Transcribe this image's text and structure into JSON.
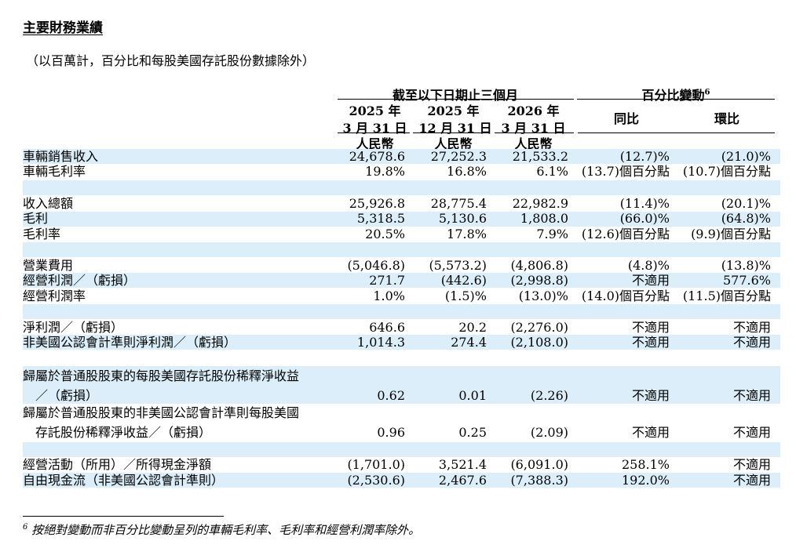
{
  "title": "主要財務業績",
  "subtitle": "（以百萬計，百分比和每股美國存託股份數據除外）",
  "header": {
    "group_period": "截至以下日期止三個月",
    "group_change": "百分比變動",
    "group_change_note": "6",
    "periods": [
      {
        "year": "2025 年",
        "date": "3 月 31 日",
        "currency": "人民幣"
      },
      {
        "year": "2025 年",
        "date": "12 月 31 日",
        "currency": "人民幣"
      },
      {
        "year": "2026 年",
        "date": "3 月 31 日",
        "currency": "人民幣"
      }
    ],
    "yoy": "同比",
    "qoq": "環比"
  },
  "rows": [
    {
      "label": "車輛銷售收入",
      "v1": "24,678.6",
      "v2": "27,252.3",
      "v3": "21,533.2",
      "yoy": "(12.7)%",
      "qoq": "(21.0)%"
    },
    {
      "label": "車輛毛利率",
      "v1": "19.8%",
      "v2": "16.8%",
      "v3": "6.1%",
      "yoy": "(13.7)個百分點",
      "qoq": "(10.7)個百分點"
    },
    {
      "label": "收入總額",
      "v1": "25,926.8",
      "v2": "28,775.4",
      "v3": "22,982.9",
      "yoy": "(11.4)%",
      "qoq": "(20.1)%"
    },
    {
      "label": "毛利",
      "v1": "5,318.5",
      "v2": "5,130.6",
      "v3": "1,808.0",
      "yoy": "(66.0)%",
      "qoq": "(64.8)%"
    },
    {
      "label": "毛利率",
      "v1": "20.5%",
      "v2": "17.8%",
      "v3": "7.9%",
      "yoy": "(12.6)個百分點",
      "qoq": "(9.9)個百分點"
    },
    {
      "label": "營業費用",
      "v1": "(5,046.8)",
      "v2": "(5,573.2)",
      "v3": "(4,806.8)",
      "yoy": "(4.8)%",
      "qoq": "(13.8)%"
    },
    {
      "label": "經營利潤／（虧損）",
      "v1": "271.7",
      "v2": "(442.6)",
      "v3": "(2,998.8)",
      "yoy": "不適用",
      "qoq": "577.6%"
    },
    {
      "label": "經營利潤率",
      "v1": "1.0%",
      "v2": "(1.5)%",
      "v3": "(13.0)%",
      "yoy": "(14.0)個百分點",
      "qoq": "(11.5)個百分點"
    },
    {
      "label": "淨利潤／（虧損）",
      "v1": "646.6",
      "v2": "20.2",
      "v3": "(2,276.0)",
      "yoy": "不適用",
      "qoq": "不適用"
    },
    {
      "label": "非美國公認會計準則淨利潤／（虧損）",
      "v1": "1,014.3",
      "v2": "274.4",
      "v3": "(2,108.0)",
      "yoy": "不適用",
      "qoq": "不適用"
    },
    {
      "label": "歸屬於普通股股東的每股美國存託股份稀釋淨收益"
    },
    {
      "label": "／（虧損）",
      "v1": "0.62",
      "v2": "0.01",
      "v3": "(2.26)",
      "yoy": "不適用",
      "qoq": "不適用"
    },
    {
      "label": "歸屬於普通股股東的非美國公認會計準則每股美國"
    },
    {
      "label": "存託股份稀釋淨收益／（虧損）",
      "v1": "0.96",
      "v2": "0.25",
      "v3": "(2.09)",
      "yoy": "不適用",
      "qoq": "不適用"
    },
    {
      "label": "經營活動（所用）／所得現金淨額",
      "v1": "(1,701.0)",
      "v2": "3,521.4",
      "v3": "(6,091.0)",
      "yoy": "258.1%",
      "qoq": "不適用"
    },
    {
      "label": "自由現金流（非美國公認會計準則）",
      "v1": "(2,530.6)",
      "v2": "2,467.6",
      "v3": "(7,388.3)",
      "yoy": "192.0%",
      "qoq": "不適用"
    }
  ],
  "footnote": {
    "mark": "6",
    "text": "按絕對變動而非百分比變動呈列的車輛毛利率、毛利率和經營利潤率除外。"
  }
}
